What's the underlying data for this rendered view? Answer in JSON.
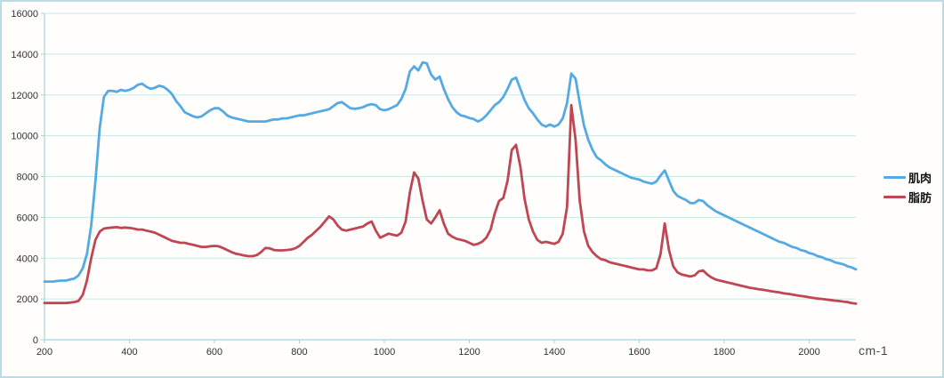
{
  "colors": {
    "grid": "#c9e7e5",
    "axis": "#a5d5d5",
    "frame_border": "#b9dde6",
    "muscle_line": "#55aae4",
    "fat_line": "#bf4753",
    "tick_text": "#333333"
  },
  "chart_data": {
    "type": "line",
    "title": "",
    "xlabel": "cm-1",
    "ylabel": "",
    "xlim": [
      200,
      2110
    ],
    "ylim": [
      0,
      16000
    ],
    "x_ticks": [
      200,
      400,
      600,
      800,
      1000,
      1200,
      1400,
      1600,
      1800,
      2000
    ],
    "y_ticks": [
      0,
      2000,
      4000,
      6000,
      8000,
      10000,
      12000,
      14000,
      16000
    ],
    "grid": "horizontal",
    "legend_position": "right",
    "x_start": 200,
    "x_step": 10,
    "series": [
      {
        "name": "肌肉",
        "color": "#55aae4",
        "values": [
          2850,
          2850,
          2850,
          2880,
          2900,
          2900,
          2950,
          3000,
          3150,
          3500,
          4200,
          5600,
          7800,
          10400,
          11900,
          12200,
          12200,
          12150,
          12250,
          12200,
          12250,
          12350,
          12500,
          12550,
          12400,
          12300,
          12350,
          12450,
          12400,
          12250,
          12050,
          11700,
          11450,
          11150,
          11050,
          10950,
          10900,
          10950,
          11100,
          11250,
          11350,
          11350,
          11200,
          11000,
          10900,
          10850,
          10800,
          10750,
          10700,
          10700,
          10700,
          10700,
          10700,
          10750,
          10800,
          10800,
          10850,
          10850,
          10900,
          10950,
          11000,
          11000,
          11050,
          11100,
          11150,
          11200,
          11250,
          11300,
          11450,
          11600,
          11650,
          11500,
          11350,
          11320,
          11350,
          11400,
          11500,
          11550,
          11500,
          11300,
          11250,
          11300,
          11400,
          11500,
          11800,
          12300,
          13150,
          13400,
          13200,
          13600,
          13550,
          13000,
          12750,
          12900,
          12300,
          11800,
          11400,
          11150,
          11000,
          10950,
          10870,
          10820,
          10700,
          10800,
          11000,
          11250,
          11500,
          11650,
          11900,
          12300,
          12750,
          12850,
          12300,
          11750,
          11350,
          11100,
          10800,
          10550,
          10450,
          10550,
          10450,
          10550,
          10850,
          11600,
          13050,
          12800,
          11600,
          10500,
          9800,
          9300,
          8950,
          8800,
          8600,
          8450,
          8350,
          8250,
          8150,
          8050,
          7950,
          7900,
          7850,
          7750,
          7700,
          7650,
          7750,
          8050,
          8300,
          7800,
          7300,
          7050,
          6950,
          6850,
          6700,
          6700,
          6850,
          6800,
          6600,
          6450,
          6300,
          6200,
          6100,
          6000,
          5900,
          5800,
          5700,
          5600,
          5500,
          5400,
          5300,
          5200,
          5100,
          5000,
          4900,
          4800,
          4750,
          4650,
          4550,
          4500,
          4400,
          4350,
          4250,
          4200,
          4100,
          4050,
          3950,
          3900,
          3800,
          3750,
          3700,
          3600,
          3550,
          3450
        ]
      },
      {
        "name": "脂肪",
        "color": "#bf4753",
        "values": [
          1800,
          1800,
          1800,
          1800,
          1800,
          1800,
          1820,
          1850,
          1900,
          2200,
          2900,
          4000,
          4900,
          5300,
          5450,
          5480,
          5500,
          5520,
          5480,
          5500,
          5480,
          5450,
          5400,
          5400,
          5350,
          5300,
          5250,
          5150,
          5050,
          4950,
          4850,
          4800,
          4750,
          4750,
          4700,
          4650,
          4600,
          4550,
          4550,
          4580,
          4600,
          4580,
          4500,
          4400,
          4300,
          4220,
          4180,
          4130,
          4100,
          4100,
          4150,
          4300,
          4500,
          4480,
          4400,
          4380,
          4380,
          4400,
          4420,
          4480,
          4600,
          4800,
          5000,
          5150,
          5350,
          5550,
          5800,
          6050,
          5900,
          5600,
          5400,
          5350,
          5400,
          5450,
          5500,
          5550,
          5700,
          5800,
          5350,
          5000,
          5100,
          5200,
          5150,
          5100,
          5250,
          5800,
          7200,
          8200,
          7900,
          6800,
          5900,
          5700,
          6000,
          6350,
          5700,
          5200,
          5050,
          4950,
          4900,
          4850,
          4750,
          4650,
          4700,
          4800,
          5000,
          5400,
          6200,
          6800,
          6950,
          7800,
          9300,
          9550,
          8500,
          6900,
          5900,
          5300,
          4900,
          4750,
          4800,
          4750,
          4700,
          4800,
          5200,
          6500,
          11500,
          9800,
          6800,
          5300,
          4600,
          4300,
          4100,
          3950,
          3900,
          3800,
          3750,
          3700,
          3650,
          3600,
          3550,
          3500,
          3450,
          3450,
          3400,
          3400,
          3500,
          4200,
          5700,
          4400,
          3600,
          3300,
          3200,
          3150,
          3100,
          3150,
          3350,
          3400,
          3200,
          3050,
          2950,
          2900,
          2850,
          2800,
          2750,
          2700,
          2650,
          2600,
          2550,
          2520,
          2480,
          2450,
          2420,
          2380,
          2350,
          2320,
          2280,
          2250,
          2220,
          2180,
          2150,
          2120,
          2080,
          2050,
          2020,
          2000,
          1970,
          1950,
          1920,
          1900,
          1870,
          1850,
          1800,
          1770
        ]
      }
    ]
  }
}
